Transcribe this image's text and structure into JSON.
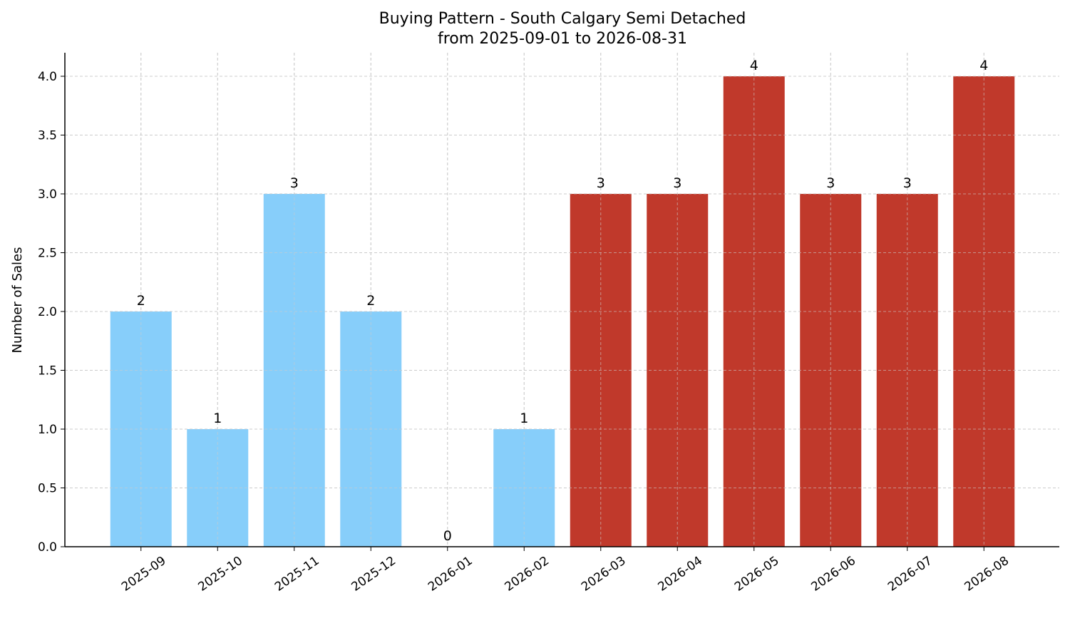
{
  "chart_data": {
    "type": "bar",
    "title": "Buying Pattern - South Calgary Semi Detached",
    "subtitle": "from 2025-09-01 to 2026-08-31",
    "xlabel": "",
    "ylabel": "Number of Sales",
    "categories": [
      "2025-09",
      "2025-10",
      "2025-11",
      "2025-12",
      "2026-01",
      "2026-02",
      "2026-03",
      "2026-04",
      "2026-05",
      "2026-06",
      "2026-07",
      "2026-08"
    ],
    "values": [
      2,
      1,
      3,
      2,
      0,
      1,
      3,
      3,
      4,
      3,
      3,
      4
    ],
    "data_labels": [
      "2",
      "1",
      "3",
      "2",
      "0",
      "1",
      "3",
      "3",
      "4",
      "3",
      "3",
      "4"
    ],
    "bar_colors": [
      "#87CEFA",
      "#87CEFA",
      "#87CEFA",
      "#87CEFA",
      "#87CEFA",
      "#87CEFA",
      "#C0392B",
      "#C0392B",
      "#C0392B",
      "#C0392B",
      "#C0392B",
      "#C0392B"
    ],
    "ylim": [
      0,
      4.2
    ],
    "yticks": [
      0.0,
      0.5,
      1.0,
      1.5,
      2.0,
      2.5,
      3.0,
      3.5,
      4.0
    ],
    "ytick_labels": [
      "0.0",
      "0.5",
      "1.0",
      "1.5",
      "2.0",
      "2.5",
      "3.0",
      "3.5",
      "4.0"
    ],
    "grid": true,
    "grid_color": "#cccccc",
    "axis_color": "#000000"
  }
}
